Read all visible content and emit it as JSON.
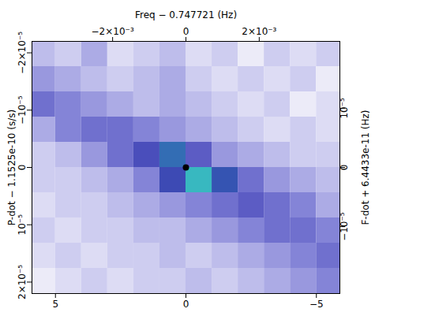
{
  "chart_data": {
    "type": "heatmap",
    "xlim": [
      5.9,
      -5.9
    ],
    "xticks": [
      5,
      0,
      {
        "value": -5,
        "label": "−5"
      }
    ],
    "ylabel": "P-dot − 1.1525e-10 (s/s)",
    "ylim": [
      2.2e-05,
      -2.2e-05
    ],
    "yticks": [
      {
        "value": -2e-05,
        "label": "−2×10⁻⁵"
      },
      {
        "value": -1e-05,
        "label": "−10⁻⁵"
      },
      0,
      {
        "value": 1e-05,
        "label": "10⁻⁵"
      },
      {
        "value": 2e-05,
        "label": "2×10⁻⁵"
      }
    ],
    "x2label": "Freq − 0.747721 (Hz)",
    "x2lim": [
      -0.0042,
      0.0042
    ],
    "x2ticks": [
      {
        "value": -0.002,
        "label": "−2×10⁻³"
      },
      0,
      {
        "value": 0.002,
        "label": "2×10⁻³"
      }
    ],
    "y2label": "F-dot + 6.4433e-11 (Hz)",
    "y2lim": [
      -2.13e-05,
      2.13e-05
    ],
    "y2ticks": [
      {
        "value": -1e-05,
        "label": "−10⁻⁵"
      },
      0,
      {
        "value": 1e-05,
        "label": "10⁻⁵"
      }
    ],
    "cells": {
      "x_edges": [
        6,
        5,
        4,
        3,
        2,
        1,
        0,
        -1,
        -2,
        -3,
        -4,
        -5,
        -6
      ],
      "y_edges": [
        -2.2e-05,
        -1.76e-05,
        -1.32e-05,
        -8.8e-06,
        -4.4e-06,
        0,
        4.4e-06,
        8.8e-06,
        1.32e-05,
        1.76e-05,
        2.2e-05
      ],
      "values": [
        [
          0.25,
          0.2,
          0.3,
          0.15,
          0.2,
          0.25,
          0.15,
          0.2,
          0.1,
          0.2,
          0.15,
          0.2
        ],
        [
          0.35,
          0.3,
          0.25,
          0.2,
          0.25,
          0.3,
          0.2,
          0.15,
          0.2,
          0.15,
          0.2,
          0.1
        ],
        [
          0.45,
          0.4,
          0.35,
          0.3,
          0.25,
          0.3,
          0.25,
          0.2,
          0.15,
          0.2,
          0.1,
          0.15
        ],
        [
          0.3,
          0.4,
          0.45,
          0.45,
          0.4,
          0.35,
          0.3,
          0.25,
          0.2,
          0.15,
          0.2,
          0.15
        ],
        [
          0.2,
          0.25,
          0.35,
          0.45,
          0.55,
          0.7,
          0.5,
          0.35,
          0.3,
          0.25,
          0.2,
          0.2
        ],
        [
          0.2,
          0.2,
          0.25,
          0.3,
          0.4,
          0.6,
          0.8,
          0.65,
          0.45,
          0.35,
          0.3,
          0.25
        ],
        [
          0.15,
          0.2,
          0.2,
          0.25,
          0.3,
          0.35,
          0.4,
          0.45,
          0.5,
          0.45,
          0.4,
          0.3
        ],
        [
          0.2,
          0.15,
          0.2,
          0.2,
          0.25,
          0.25,
          0.3,
          0.35,
          0.4,
          0.45,
          0.45,
          0.4
        ],
        [
          0.15,
          0.2,
          0.15,
          0.2,
          0.2,
          0.25,
          0.2,
          0.25,
          0.3,
          0.35,
          0.4,
          0.45
        ],
        [
          0.1,
          0.15,
          0.2,
          0.15,
          0.2,
          0.2,
          0.25,
          0.2,
          0.25,
          0.3,
          0.35,
          0.4
        ]
      ]
    },
    "peak": {
      "x": 0,
      "y": 0
    }
  }
}
